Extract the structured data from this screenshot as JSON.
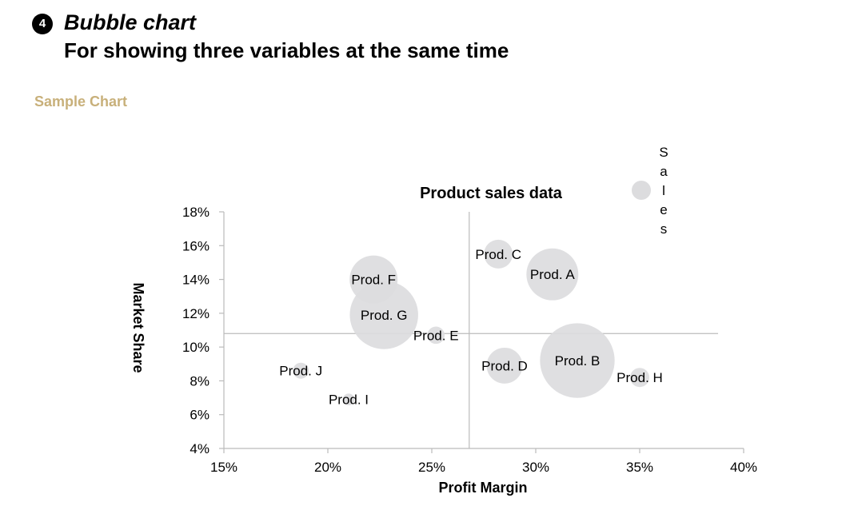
{
  "header": {
    "badge": "4",
    "title": "Bubble chart",
    "subtitle": "For showing three variables at the same time",
    "section_label": "Sample Chart"
  },
  "colors": {
    "section_label": "#c8b07a",
    "bubble_fill": "#dcdcde",
    "axis": "#bbbbbb",
    "text": "#000000"
  },
  "chart_data": {
    "type": "bubble",
    "title": "Product sales data",
    "xlabel": "Profit Margin",
    "ylabel": "Market Share",
    "xlim": [
      0.15,
      0.4
    ],
    "ylim": [
      0.04,
      0.18
    ],
    "xticks": [
      0.15,
      0.2,
      0.25,
      0.3,
      0.35,
      0.4
    ],
    "yticks": [
      0.04,
      0.06,
      0.08,
      0.1,
      0.12,
      0.14,
      0.16,
      0.18
    ],
    "xtick_labels": [
      "15%",
      "20%",
      "25%",
      "30%",
      "35%",
      "40%"
    ],
    "ytick_labels": [
      "4%",
      "6%",
      "8%",
      "10%",
      "12%",
      "14%",
      "16%",
      "18%"
    ],
    "reference_lines": {
      "x": 0.268,
      "y": 0.108
    },
    "legend": {
      "label": "Sales",
      "position": "top-right"
    },
    "series": [
      {
        "name": "Sales",
        "points": [
          {
            "label": "Prod. A",
            "x": 0.308,
            "y": 0.143,
            "size": 1.17
          },
          {
            "label": "Prod. B",
            "x": 0.32,
            "y": 0.092,
            "size": 2.42
          },
          {
            "label": "Prod. C",
            "x": 0.282,
            "y": 0.155,
            "size": 0.36
          },
          {
            "label": "Prod. D",
            "x": 0.285,
            "y": 0.089,
            "size": 0.56
          },
          {
            "label": "Prod. E",
            "x": 0.252,
            "y": 0.107,
            "size": 0.13
          },
          {
            "label": "Prod. F",
            "x": 0.222,
            "y": 0.14,
            "size": 1.0
          },
          {
            "label": "Prod. G",
            "x": 0.227,
            "y": 0.119,
            "size": 2.03
          },
          {
            "label": "Prod. H",
            "x": 0.35,
            "y": 0.082,
            "size": 0.16
          },
          {
            "label": "Prod. I",
            "x": 0.21,
            "y": 0.069,
            "size": 0.06
          },
          {
            "label": "Prod. J",
            "x": 0.187,
            "y": 0.086,
            "size": 0.11
          }
        ]
      }
    ]
  }
}
